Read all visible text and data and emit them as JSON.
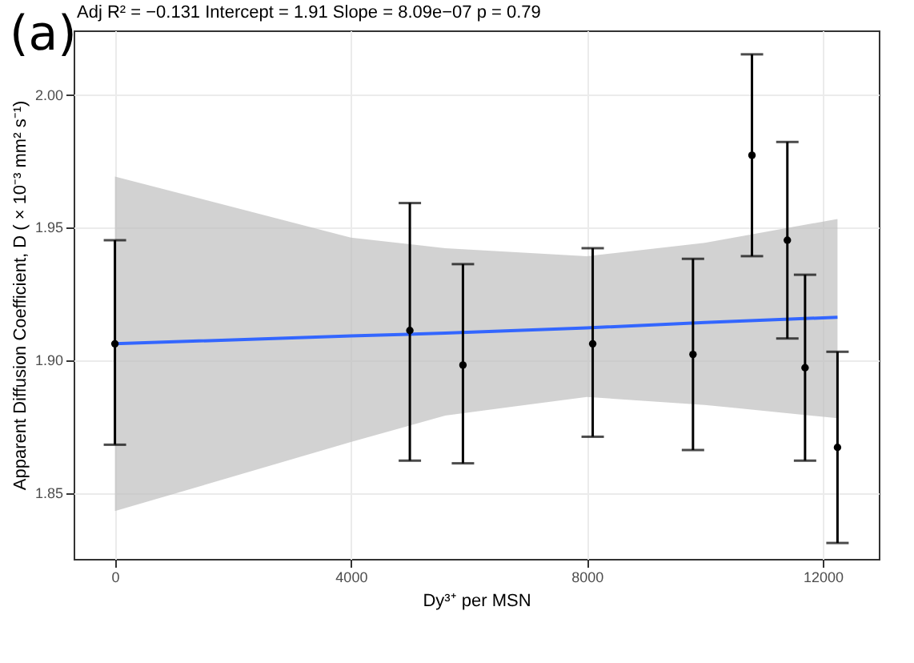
{
  "chart_data": {
    "type": "scatter",
    "title": "Adj R² =  −0.131 Intercept = 1.91  Slope = 8.09e−07  p = 0.79",
    "xlabel": "Dy³⁺ per MSN",
    "ylabel": "Apparent Diffusion Coefficient, D ( × 10⁻³ mm² s⁻¹)",
    "annotations": [
      "(a)"
    ],
    "xlim": [
      -700,
      12950
    ],
    "xticks": [
      0,
      4000,
      8000,
      12000
    ],
    "ylim": [
      1.825,
      2.024
    ],
    "yticks": [
      1.85,
      {
        "value": 1.9,
        "label": "1.90"
      },
      1.95,
      {
        "value": 2,
        "label": "2.00"
      }
    ],
    "grid": true,
    "series": [
      {
        "type": "line",
        "color": "#3366ff",
        "x": [
          0,
          4000,
          5600,
          8000,
          10000,
          12250
        ],
        "values": [
          1.906,
          1.909,
          1.91,
          1.912,
          1.914,
          1.916
        ],
        "lower": [
          1.843,
          1.869,
          1.879,
          1.886,
          1.883,
          1.878
        ],
        "upper": [
          1.969,
          1.946,
          1.942,
          1.939,
          1.944,
          1.953
        ],
        "line_style": "solid"
      },
      {
        "color": "#000000",
        "marker": "circle",
        "x": [
          0,
          5000,
          5900,
          8100,
          9800,
          10800,
          11400,
          11700,
          12250
        ],
        "values": [
          1.906,
          1.911,
          1.898,
          1.906,
          1.902,
          1.977,
          1.945,
          1.897,
          1.867
        ],
        "errors": [
          [
            1.868,
            1.945
          ],
          [
            1.862,
            1.959
          ],
          [
            1.861,
            1.936
          ],
          [
            1.871,
            1.942
          ],
          [
            1.866,
            1.938
          ],
          [
            1.939,
            2.015
          ],
          [
            1.908,
            1.982
          ],
          [
            1.862,
            1.932
          ],
          [
            1.831,
            1.903
          ]
        ]
      }
    ]
  }
}
